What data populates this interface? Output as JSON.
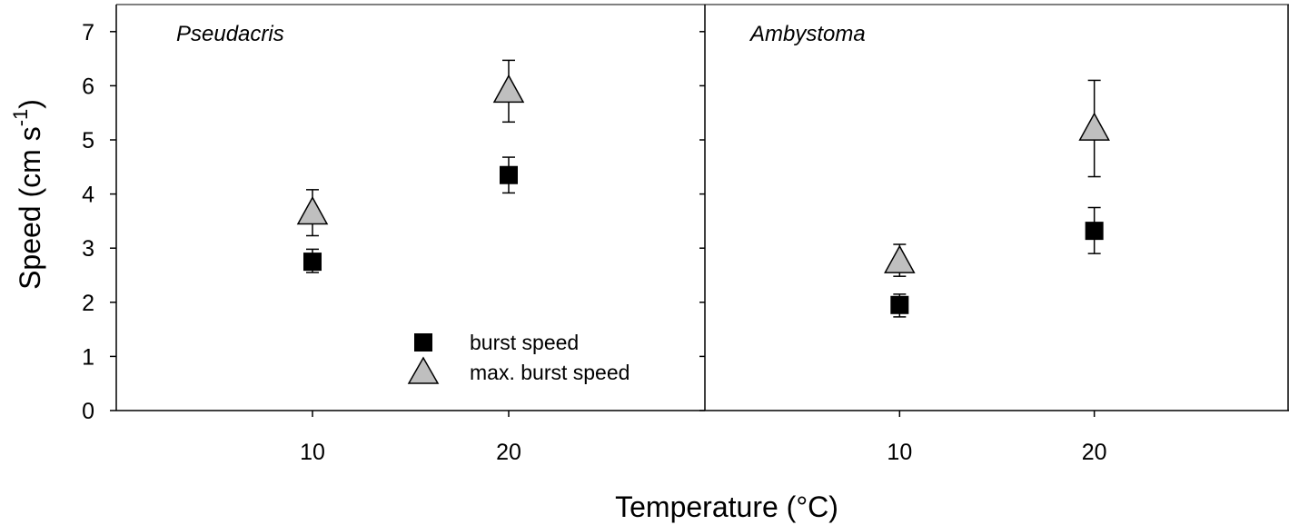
{
  "chart_data": {
    "type": "scatter",
    "ylabel": "Speed (cm s",
    "ylabel_superscript": "-1",
    "ylabel_close": ")",
    "xlabel": "Temperature (°C)",
    "ylim": [
      0,
      7.5
    ],
    "yticks": [
      0,
      1,
      2,
      3,
      4,
      5,
      6,
      7
    ],
    "xticks": [
      10,
      20
    ],
    "error_bars": true,
    "grid": false,
    "legend": {
      "placement": "bottom-right of left panel",
      "entries": [
        {
          "label": "burst speed",
          "marker": "square",
          "color": "#000000"
        },
        {
          "label": "max. burst speed",
          "marker": "triangle",
          "color": "#bfbfbf"
        }
      ]
    },
    "panels": [
      {
        "title": "Pseudacris",
        "xlim": [
          0,
          30
        ],
        "series": [
          {
            "name": "burst speed",
            "marker": "square",
            "color": "#000000",
            "points": [
              {
                "x": 10,
                "y": 2.75,
                "ylow": 2.55,
                "yhigh": 2.98
              },
              {
                "x": 20,
                "y": 4.35,
                "ylow": 4.02,
                "yhigh": 4.68
              }
            ]
          },
          {
            "name": "max. burst speed",
            "marker": "triangle",
            "color": "#bfbfbf",
            "points": [
              {
                "x": 10,
                "y": 3.65,
                "ylow": 3.23,
                "yhigh": 4.08
              },
              {
                "x": 20,
                "y": 5.9,
                "ylow": 5.33,
                "yhigh": 6.47
              }
            ]
          }
        ]
      },
      {
        "title": "Ambystoma",
        "xlim": [
          0,
          30
        ],
        "series": [
          {
            "name": "burst speed",
            "marker": "square",
            "color": "#000000",
            "points": [
              {
                "x": 10,
                "y": 1.95,
                "ylow": 1.73,
                "yhigh": 2.15
              },
              {
                "x": 20,
                "y": 3.32,
                "ylow": 2.9,
                "yhigh": 3.75
              }
            ]
          },
          {
            "name": "max. burst speed",
            "marker": "triangle",
            "color": "#bfbfbf",
            "points": [
              {
                "x": 10,
                "y": 2.75,
                "ylow": 2.48,
                "yhigh": 3.07
              },
              {
                "x": 20,
                "y": 5.2,
                "ylow": 4.32,
                "yhigh": 6.1
              }
            ]
          }
        ]
      }
    ]
  }
}
